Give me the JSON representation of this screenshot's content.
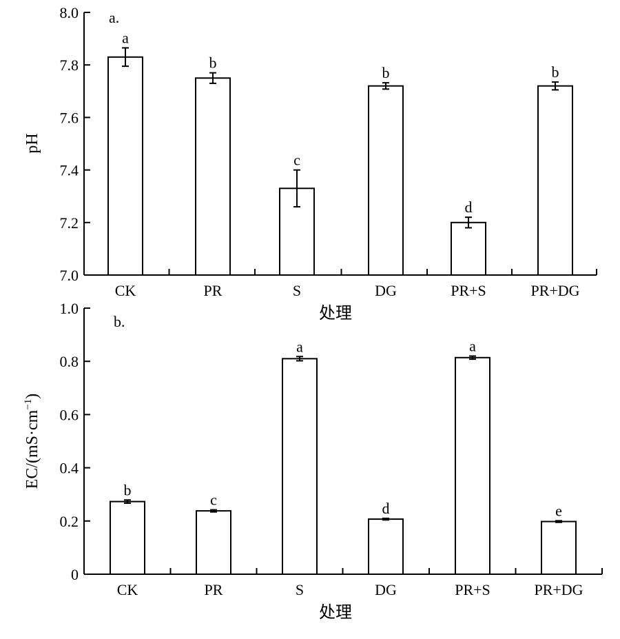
{
  "chart_data": [
    {
      "type": "bar",
      "panel_label": "a.",
      "categories": [
        "CK",
        "PR",
        "S",
        "DG",
        "PR+S",
        "PR+DG"
      ],
      "values": [
        7.83,
        7.75,
        7.33,
        7.72,
        7.2,
        7.72
      ],
      "errors": [
        0.035,
        0.02,
        0.07,
        0.012,
        0.02,
        0.015
      ],
      "significance": [
        "a",
        "b",
        "c",
        "b",
        "d",
        "b"
      ],
      "xlabel": "处理",
      "ylabel": "pH",
      "ylim": [
        7.0,
        8.0
      ],
      "yticks": [
        "7.0",
        "7.2",
        "7.4",
        "7.6",
        "7.8",
        "8.0"
      ],
      "grid": false
    },
    {
      "type": "bar",
      "panel_label": "b.",
      "categories": [
        "CK",
        "PR",
        "S",
        "DG",
        "PR+S",
        "PR+DG"
      ],
      "values": [
        0.273,
        0.238,
        0.81,
        0.207,
        0.814,
        0.198
      ],
      "errors": [
        0.006,
        0.004,
        0.008,
        0.003,
        0.006,
        0.003
      ],
      "significance": [
        "b",
        "c",
        "a",
        "d",
        "a",
        "e"
      ],
      "xlabel": "处理",
      "ylabel_main": "EC/(mS·cm",
      "ylabel_sup": "−1",
      "ylabel_close": ")",
      "ylim": [
        0,
        1.0
      ],
      "yticks": [
        "0",
        "0.2",
        "0.4",
        "0.6",
        "0.8",
        "1.0"
      ],
      "grid": false
    }
  ]
}
